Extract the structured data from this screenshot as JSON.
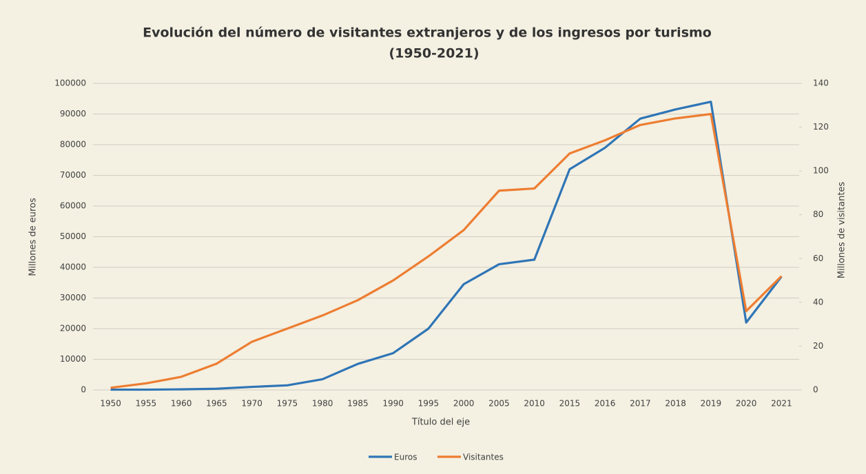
{
  "chart_data": {
    "type": "line",
    "title": [
      "Evolución del número de visitantes extranjeros y de los ingresos por turismo",
      "(1950-2021)"
    ],
    "x_label": "Título del eje",
    "y_label": "Millones de euros",
    "y2_label": "Millones de visitantes",
    "categories": [
      "1950",
      "1955",
      "1960",
      "1965",
      "1970",
      "1975",
      "1980",
      "1985",
      "1990",
      "1995",
      "2000",
      "2005",
      "2010",
      "2015",
      "2016",
      "2017",
      "2018",
      "2019",
      "2020",
      "2021"
    ],
    "series": [
      {
        "name": "Euros",
        "color": "#2e75b6",
        "values": [
          100,
          100,
          200,
          400,
          1000,
          1500,
          3500,
          8500,
          12000,
          20000,
          34500,
          41000,
          42500,
          72000,
          79000,
          88500,
          91500,
          94000,
          22000,
          37000
        ]
      },
      {
        "name": "Visitantes",
        "color": "#ed7d31",
        "axis": "y2",
        "values": [
          1,
          3,
          6,
          12,
          22,
          28,
          34,
          41,
          50,
          61,
          73,
          91,
          92,
          108,
          114,
          121,
          124,
          126,
          36,
          52
        ]
      }
    ],
    "ylim": [
      0,
      100000
    ],
    "yticks": [
      0,
      10000,
      20000,
      30000,
      40000,
      50000,
      60000,
      70000,
      80000,
      90000,
      100000
    ],
    "y2lim": [
      0,
      140
    ],
    "y2ticks": [
      0,
      20,
      40,
      60,
      80,
      100,
      120,
      140
    ],
    "grid": true,
    "legend": "bottom"
  }
}
